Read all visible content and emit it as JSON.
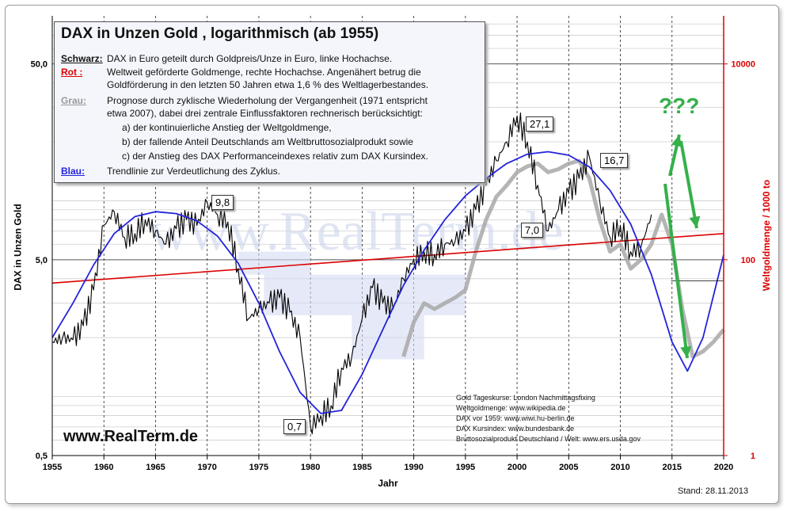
{
  "chart_data": {
    "type": "line",
    "title": "DAX in Unzen Gold , logarithmisch  (ab 1955)",
    "xlabel": "Jahr",
    "ylabel_left": "DAX in Unzen Gold",
    "ylabel_right": "Weltgoldmenge / 1000 to",
    "x_ticks": [
      "1955",
      "1960",
      "1965",
      "1970",
      "1975",
      "1980",
      "1985",
      "1990",
      "1995",
      "2000",
      "2005",
      "2010",
      "2015",
      "2020"
    ],
    "y_left_ticks": [
      "50,0",
      "5,0",
      "0,5"
    ],
    "y_right_ticks": [
      "10000",
      "100",
      "1"
    ],
    "y_left_scale": "log",
    "y_left_range": [
      0.5,
      50
    ],
    "y_right_range": [
      1,
      10000
    ],
    "x_range": [
      1955,
      2020
    ],
    "series": [
      {
        "name": "Schwarz",
        "color": "#000000",
        "x": [
          1955,
          1956,
          1957,
          1958,
          1959,
          1960,
          1961,
          1962,
          1963,
          1964,
          1965,
          1966,
          1967,
          1968,
          1969,
          1970,
          1971,
          1972,
          1973,
          1974,
          1975,
          1976,
          1977,
          1978,
          1979,
          1980,
          1981,
          1982,
          1983,
          1984,
          1985,
          1986,
          1987,
          1988,
          1989,
          1990,
          1991,
          1992,
          1993,
          1994,
          1995,
          1996,
          1997,
          1998,
          1999,
          2000,
          2001,
          2002,
          2003,
          2004,
          2005,
          2006,
          2007,
          2008,
          2009,
          2010,
          2011,
          2012,
          2013
        ],
        "y": [
          1.9,
          2.0,
          1.95,
          2.3,
          3.5,
          7.5,
          8.8,
          6.5,
          6.8,
          8.0,
          7.0,
          6.0,
          7.2,
          8.0,
          7.5,
          9.8,
          8.5,
          7.8,
          4.5,
          2.5,
          2.8,
          3.0,
          3.2,
          2.7,
          2.0,
          0.7,
          0.8,
          0.9,
          1.4,
          1.6,
          2.5,
          3.6,
          3.0,
          2.8,
          4.0,
          5.0,
          5.5,
          5.3,
          6.0,
          6.2,
          7.0,
          9.0,
          12.0,
          16.0,
          20.0,
          27.1,
          20.0,
          12.0,
          7.0,
          9.0,
          11.0,
          13.0,
          16.7,
          10.0,
          6.5,
          7.5,
          5.5,
          5.8,
          8.5
        ]
      },
      {
        "name": "Rot",
        "color": "#dd0000",
        "x": [
          1955,
          2020
        ],
        "y": [
          3.8,
          6.8
        ]
      },
      {
        "name": "Blau",
        "color": "#2222dd",
        "x": [
          1955,
          1957,
          1959,
          1961,
          1963,
          1965,
          1967,
          1969,
          1971,
          1973,
          1975,
          1977,
          1979,
          1981,
          1983,
          1985,
          1987,
          1989,
          1991,
          1993,
          1995,
          1997,
          1999,
          2001,
          2003,
          2005,
          2007,
          2009,
          2011,
          2013,
          2015,
          2016.5,
          2018,
          2020
        ],
        "y": [
          2.0,
          3.0,
          4.7,
          6.8,
          8.3,
          8.8,
          8.6,
          7.9,
          6.6,
          4.8,
          3.0,
          1.7,
          1.05,
          0.82,
          0.85,
          1.3,
          2.2,
          3.7,
          5.6,
          8.0,
          10.6,
          13.0,
          15.5,
          17.3,
          17.8,
          17.1,
          14.9,
          11.3,
          7.6,
          4.2,
          1.9,
          1.35,
          2.0,
          5.3
        ]
      },
      {
        "name": "Grau",
        "color": "#aaaaaa",
        "x": [
          1989,
          1990,
          1991,
          1992,
          1993,
          1994,
          1995,
          1996,
          1997,
          1998,
          1999,
          2000,
          2001,
          2002,
          2003,
          2004,
          2005,
          2006,
          2007,
          2008,
          2009,
          2010,
          2011,
          2012,
          2013,
          2014,
          2015,
          2016,
          2017,
          2018,
          2019,
          2020
        ],
        "y": [
          1.6,
          2.4,
          3.0,
          2.8,
          3.0,
          3.2,
          3.5,
          5.5,
          8.0,
          10.5,
          12.0,
          14.0,
          15.0,
          15.5,
          14.0,
          14.5,
          15.5,
          16.0,
          13.0,
          8.0,
          5.5,
          6.0,
          4.5,
          5.0,
          6.0,
          8.5,
          6.0,
          2.8,
          1.6,
          1.7,
          1.9,
          2.2
        ]
      }
    ],
    "annotations": [
      "9,8",
      "0,7",
      "27,1",
      "7,0",
      "16,7",
      "???"
    ]
  },
  "legend": {
    "title": "DAX in Unzen Gold , logarithmisch  (ab 1955)",
    "schwarz_key": "Schwarz:",
    "schwarz_text": "DAX in Euro geteilt durch Goldpreis/Unze in Euro, linke Hochachse.",
    "rot_key": "Rot :",
    "rot_text_1": "Weltweit geförderte Goldmenge, rechte Hochachse. Angenähert betrug die",
    "rot_text_2": "Goldförderung in den letzten 50 Jahren etwa  1,6 %  des Weltlagerbestandes.",
    "grau_key": "Grau:",
    "grau_text_1": "Prognose durch zyklische Wiederholung der Vergangenheit (1971 entspricht",
    "grau_text_2": "etwa 2007),   dabei drei zentrale Einflussfaktoren rechnerisch berücksichtigt:",
    "grau_a": "a) der kontinuierliche Anstieg der Weltgoldmenge,",
    "grau_b": "b) der fallende Anteil Deutschlands am Weltbruttosozialprodukt sowie",
    "grau_c": "c) der Anstieg des DAX Performanceindexes relativ zum DAX Kursindex.",
    "blau_key": "Blau:",
    "blau_text": "Trendlinie zur Verdeutlichung des Zyklus."
  },
  "watermark": "www.RealTerm.de",
  "site": "www.RealTerm.de",
  "sources": [
    "Gold Tageskurse: London Nachmittagsfixing",
    "Weltgoldmenge: www.wikipedia.de",
    "DAX vor 1959: www.wiwi.hu-berlin.de",
    "DAX Kursindex: www.bundesbank.de",
    "Bruttosozialprodukt Deutschland / Welt: www.ers.usda.gov"
  ],
  "stand": "Stand:  28.11.2013",
  "colors": {
    "black": "#000000",
    "red": "#dd0000",
    "blue": "#2222dd",
    "grey": "#aaaaaa",
    "green": "#35b04a"
  }
}
